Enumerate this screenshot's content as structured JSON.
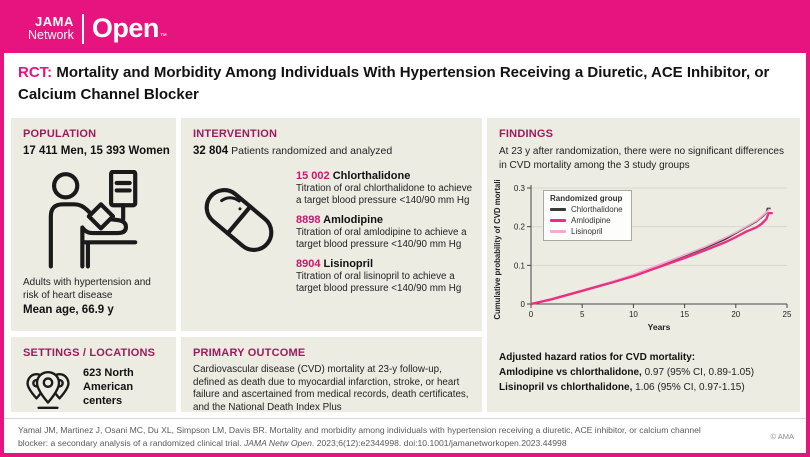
{
  "header": {
    "logo": {
      "line1": "JAMA",
      "line2": "Network",
      "name": "Open",
      "tm": "™"
    }
  },
  "title": {
    "tag": "RCT:",
    "text": " Mortality and Morbidity Among Individuals With Hypertension Receiving a Diuretic, ACE Inhibitor, or Calcium Channel Blocker"
  },
  "population": {
    "heading": "POPULATION",
    "counts": "17 411 Men, 15 393 Women",
    "description": "Adults with hypertension and risk of heart disease",
    "mean_age": "Mean age, 66.9 y"
  },
  "intervention": {
    "heading": "INTERVENTION",
    "count": "32 804",
    "count_text": "Patients randomized and analyzed",
    "drugs": [
      {
        "count": "15 002",
        "name": "Chlorthalidone",
        "description": "Titration of oral chlorthalidone to achieve a target blood pressure <140/90 mm Hg"
      },
      {
        "count": "8898",
        "name": "Amlodipine",
        "description": "Titration of oral amlodipine to achieve a target blood pressure <140/90 mm Hg"
      },
      {
        "count": "8904",
        "name": "Lisinopril",
        "description": "Titration of oral lisinopril to achieve a target blood pressure <140/90 mm Hg"
      }
    ]
  },
  "findings": {
    "heading": "FINDINGS",
    "summary": "At 23 y after randomization, there were no significant differences in CVD mortality among the 3 study groups",
    "hazard_heading": "Adjusted hazard ratios for CVD mortality:",
    "hazard_lines": [
      {
        "bold": "Amlodipine vs chlorthalidone,",
        "rest": "0.97 (95% CI, 0.89-1.05)"
      },
      {
        "bold": "Lisinopril vs chlorthalidone,",
        "rest": "1.06 (95% CI, 0.97-1.15)"
      }
    ]
  },
  "settings": {
    "heading": "SETTINGS / LOCATIONS",
    "text": "623 North American centers"
  },
  "primary_outcome": {
    "heading": "PRIMARY OUTCOME",
    "text": "Cardiovascular disease (CVD) mortality at 23-y follow-up, defined as death due to myocardial infarction, stroke, or heart failure and ascertained from medical records, death certificates, and the National Death Index Plus"
  },
  "footer": {
    "citation_pre": "Yamal JM, Martinez J, Osani MC, Du XL, Simpson LM, Davis BR. Mortality and morbidity among individuals with hypertension receiving a diuretic, ACE inhibitor, or calcium channel blocker: a secondary analysis of a randomized clinical trial. ",
    "journal": "JAMA Netw Open",
    "citation_post": ". 2023;6(12):e2344998. doi:10.1001/jamanetworkopen.2023.44998",
    "copyright": "© AMA"
  },
  "colors": {
    "brand_pink": "#e7137f",
    "heading_berry": "#9c1b5c",
    "number_pink": "#c51a6c",
    "panel_bg": "#edece3",
    "chlorthalidone": "#3a3a3a",
    "amlodipine": "#ee2c81",
    "lisinopril": "#f5a9cb"
  },
  "chart_data": {
    "type": "line",
    "title": "",
    "xlabel": "Years",
    "ylabel": "Cumulative probability of CVD mortality",
    "xlim": [
      0,
      25
    ],
    "ylim": [
      0,
      0.3
    ],
    "x_ticks": [
      0,
      5,
      10,
      15,
      20,
      25
    ],
    "y_ticks": [
      0,
      0.1,
      0.2,
      0.3
    ],
    "grid": "horizontal",
    "legend": {
      "title": "Randomized group",
      "position": "upper-left"
    },
    "series": [
      {
        "name": "Chlorthalidone",
        "color": "#3a3a3a",
        "points": [
          [
            0,
            0
          ],
          [
            2,
            0.013
          ],
          [
            5,
            0.035
          ],
          [
            8,
            0.058
          ],
          [
            10,
            0.075
          ],
          [
            12,
            0.095
          ],
          [
            15,
            0.125
          ],
          [
            17,
            0.145
          ],
          [
            19,
            0.168
          ],
          [
            20,
            0.183
          ],
          [
            21,
            0.198
          ],
          [
            22,
            0.213
          ],
          [
            22.7,
            0.228
          ],
          [
            23,
            0.237
          ],
          [
            23.1,
            0.247
          ],
          [
            23.4,
            0.247
          ]
        ]
      },
      {
        "name": "Amlodipine",
        "color": "#ee2c81",
        "points": [
          [
            0,
            0
          ],
          [
            2,
            0.012
          ],
          [
            5,
            0.034
          ],
          [
            8,
            0.056
          ],
          [
            10,
            0.072
          ],
          [
            12,
            0.091
          ],
          [
            15,
            0.119
          ],
          [
            17,
            0.139
          ],
          [
            19,
            0.16
          ],
          [
            20,
            0.173
          ],
          [
            21,
            0.187
          ],
          [
            22,
            0.198
          ],
          [
            22.5,
            0.207
          ],
          [
            23,
            0.22
          ],
          [
            23.2,
            0.235
          ],
          [
            23.6,
            0.235
          ]
        ]
      },
      {
        "name": "Lisinopril",
        "color": "#f5a9cb",
        "points": [
          [
            0,
            0
          ],
          [
            2,
            0.013
          ],
          [
            5,
            0.035
          ],
          [
            8,
            0.058
          ],
          [
            10,
            0.076
          ],
          [
            12,
            0.096
          ],
          [
            15,
            0.127
          ],
          [
            17,
            0.148
          ],
          [
            19,
            0.172
          ],
          [
            20,
            0.185
          ],
          [
            21,
            0.2
          ],
          [
            22,
            0.215
          ],
          [
            22.6,
            0.228
          ],
          [
            23,
            0.238
          ],
          [
            23.3,
            0.246
          ]
        ]
      }
    ]
  }
}
